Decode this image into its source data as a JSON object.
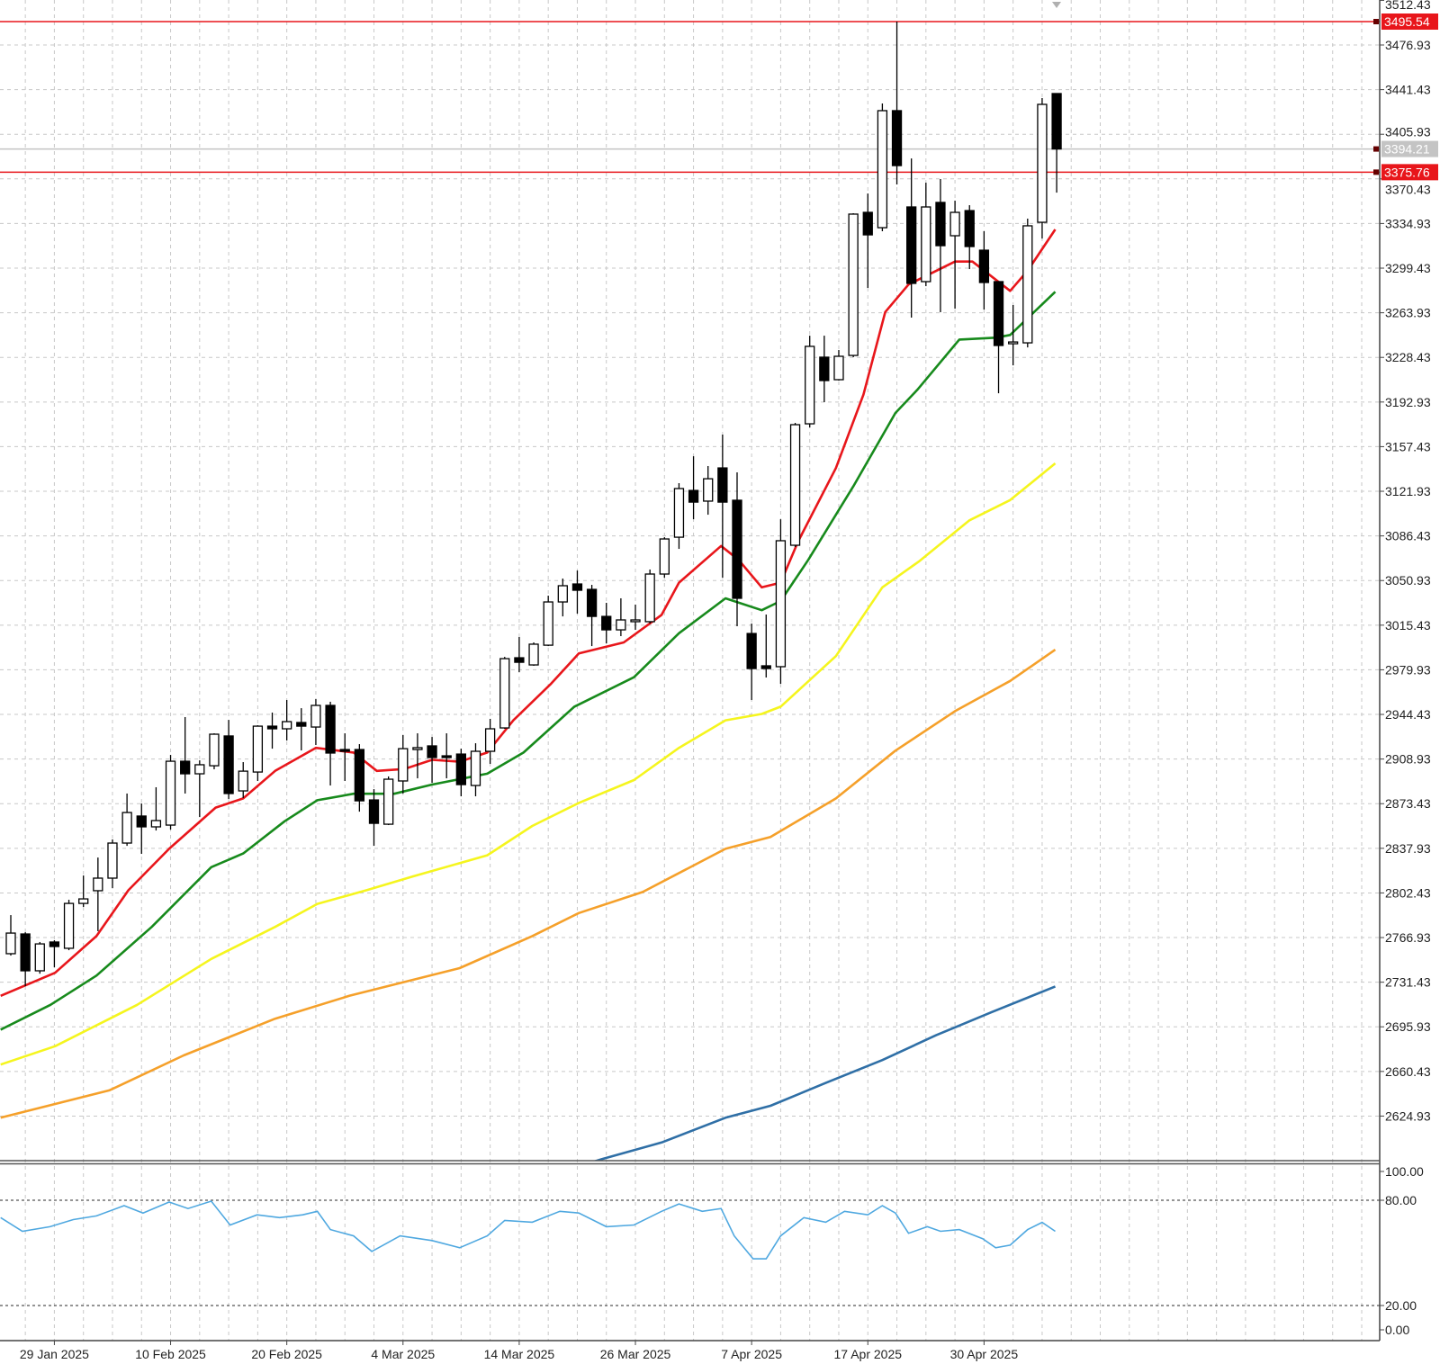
{
  "chart_data": [
    {
      "type": "candlestick",
      "title": "",
      "y_ticks": [
        "3512.43",
        "3476.93",
        "3441.43",
        "3405.93",
        "3370.43",
        "3334.93",
        "3299.43",
        "3263.93",
        "3228.43",
        "3192.93",
        "3157.43",
        "3121.93",
        "3086.43",
        "3050.93",
        "3015.43",
        "2979.93",
        "2944.43",
        "2908.93",
        "2873.43",
        "2837.93",
        "2802.43",
        "2766.93",
        "2731.43",
        "2695.93",
        "2660.43",
        "2624.93"
      ],
      "ylim": [
        2590,
        3512.43
      ],
      "grid": true,
      "x_labels": [
        {
          "index": 3,
          "label": "29 Jan 2025"
        },
        {
          "index": 11,
          "label": "10 Feb 2025"
        },
        {
          "index": 19,
          "label": "20 Feb 2025"
        },
        {
          "index": 27,
          "label": "4 Mar 2025"
        },
        {
          "index": 35,
          "label": "14 Mar 2025"
        },
        {
          "index": 43,
          "label": "26 Mar 2025"
        },
        {
          "index": 51,
          "label": "7 Apr 2025"
        },
        {
          "index": 59,
          "label": "17 Apr 2025"
        },
        {
          "index": 67,
          "label": "30 Apr 2025"
        }
      ],
      "candles_ohlc": [
        [
          2754.1,
          2784.8,
          2752.6,
          2770.5
        ],
        [
          2769.8,
          2771.2,
          2728.3,
          2740.5
        ],
        [
          2740.5,
          2763.4,
          2738.2,
          2761.9
        ],
        [
          2763.4,
          2764.8,
          2743.3,
          2759.8
        ],
        [
          2758.4,
          2797.0,
          2756.9,
          2794.1
        ],
        [
          2794.1,
          2816.3,
          2791.3,
          2797.7
        ],
        [
          2804.2,
          2830.6,
          2772.0,
          2814.2
        ],
        [
          2814.2,
          2845.0,
          2806.3,
          2842.1
        ],
        [
          2842.1,
          2881.5,
          2839.9,
          2866.4
        ],
        [
          2863.6,
          2873.6,
          2833.5,
          2855.0
        ],
        [
          2855.0,
          2886.5,
          2852.1,
          2860.0
        ],
        [
          2856.4,
          2912.2,
          2852.8,
          2907.2
        ],
        [
          2907.2,
          2942.3,
          2881.5,
          2897.2
        ],
        [
          2897.2,
          2907.9,
          2862.8,
          2904.4
        ],
        [
          2903.6,
          2929.4,
          2900.8,
          2928.7
        ],
        [
          2927.3,
          2940.1,
          2877.2,
          2881.5
        ],
        [
          2883.6,
          2906.5,
          2877.9,
          2899.3
        ],
        [
          2898.6,
          2935.8,
          2891.5,
          2935.1
        ],
        [
          2935.1,
          2945.9,
          2917.2,
          2933.0
        ],
        [
          2933.0,
          2955.9,
          2923.7,
          2938.7
        ],
        [
          2938.0,
          2949.4,
          2915.8,
          2935.1
        ],
        [
          2934.4,
          2956.6,
          2920.1,
          2951.6
        ],
        [
          2951.6,
          2954.5,
          2887.9,
          2913.7
        ],
        [
          2916.5,
          2929.4,
          2891.5,
          2915.1
        ],
        [
          2916.5,
          2920.8,
          2867.1,
          2875.7
        ],
        [
          2876.4,
          2885.0,
          2839.9,
          2857.8
        ],
        [
          2857.1,
          2895.1,
          2856.4,
          2892.9
        ],
        [
          2891.5,
          2928.0,
          2881.5,
          2917.2
        ],
        [
          2916.5,
          2929.4,
          2893.6,
          2918.0
        ],
        [
          2919.4,
          2926.5,
          2890.0,
          2910.1
        ],
        [
          2911.5,
          2929.4,
          2893.6,
          2910.1
        ],
        [
          2912.9,
          2917.2,
          2879.3,
          2888.6
        ],
        [
          2887.9,
          2921.5,
          2879.3,
          2915.1
        ],
        [
          2915.1,
          2940.9,
          2905.1,
          2933.0
        ],
        [
          2933.7,
          2990.2,
          2933.0,
          2988.8
        ],
        [
          2989.5,
          3006.0,
          2978.1,
          2985.9
        ],
        [
          2983.8,
          3001.7,
          2983.1,
          3000.3
        ],
        [
          2999.5,
          3038.9,
          2998.8,
          3033.9
        ],
        [
          3033.9,
          3052.5,
          3022.4,
          3046.8
        ],
        [
          3048.2,
          3058.9,
          3024.6,
          3043.2
        ],
        [
          3043.9,
          3047.5,
          2998.8,
          3022.4
        ],
        [
          3022.4,
          3033.2,
          3001.0,
          3011.7
        ],
        [
          3011.7,
          3036.8,
          3006.7,
          3019.6
        ],
        [
          3018.2,
          3031.8,
          3011.7,
          3019.6
        ],
        [
          3018.2,
          3059.7,
          3016.7,
          3056.1
        ],
        [
          3056.1,
          3085.4,
          3053.2,
          3084.0
        ],
        [
          3085.4,
          3128.4,
          3076.1,
          3124.1
        ],
        [
          3122.6,
          3149.8,
          3099.7,
          3113.3
        ],
        [
          3114.1,
          3142.0,
          3103.3,
          3131.9
        ],
        [
          3140.5,
          3167.0,
          3053.2,
          3113.3
        ],
        [
          3114.8,
          3137.0,
          3014.6,
          3036.8
        ],
        [
          3008.8,
          3016.7,
          2955.9,
          2980.9
        ],
        [
          2983.1,
          3023.9,
          2973.8,
          2980.9
        ],
        [
          2982.4,
          3099.7,
          2968.8,
          3082.6
        ],
        [
          3079.0,
          3176.3,
          3077.6,
          3174.9
        ],
        [
          3175.6,
          3245.7,
          3172.7,
          3237.2
        ],
        [
          3228.6,
          3245.7,
          3192.8,
          3210.0
        ],
        [
          3210.7,
          3234.3,
          3210.0,
          3229.3
        ],
        [
          3230.0,
          3343.1,
          3228.6,
          3342.4
        ],
        [
          3343.8,
          3358.8,
          3283.7,
          3325.9
        ],
        [
          3331.6,
          3430.4,
          3328.8,
          3424.7
        ],
        [
          3424.7,
          3495.54,
          3366.0,
          3381.0
        ],
        [
          3348.1,
          3386.7,
          3260.1,
          3287.3
        ],
        [
          3288.7,
          3367.4,
          3285.1,
          3348.1
        ],
        [
          3351.7,
          3370.3,
          3264.4,
          3317.3
        ],
        [
          3325.2,
          3353.1,
          3267.2,
          3343.8
        ],
        [
          3345.2,
          3349.5,
          3298.7,
          3316.6
        ],
        [
          3313.7,
          3328.8,
          3266.5,
          3288.0
        ],
        [
          3288.7,
          3288.7,
          3199.9,
          3237.9
        ],
        [
          3239.3,
          3270.1,
          3222.1,
          3240.7
        ],
        [
          3240.0,
          3338.8,
          3236.4,
          3333.1
        ],
        [
          3335.9,
          3434.7,
          3323.0,
          3429.7
        ],
        [
          3438.3,
          3438.3,
          3359.5,
          3394.21
        ]
      ],
      "overlays": [
        {
          "name": "ma-red",
          "color": "#e8161b",
          "points": [
            [
              -0.7,
              2720.6
            ],
            [
              3.05,
              2738.9
            ],
            [
              5.9,
              2768.1
            ],
            [
              8.1,
              2804.6
            ],
            [
              10.9,
              2837.5
            ],
            [
              14.1,
              2870.3
            ],
            [
              16.0,
              2877.6
            ],
            [
              18.2,
              2899.5
            ],
            [
              21.0,
              2917.8
            ],
            [
              23.6,
              2914.1
            ],
            [
              25.2,
              2899.5
            ],
            [
              27.1,
              2901.0
            ],
            [
              29.0,
              2908.3
            ],
            [
              30.9,
              2906.8
            ],
            [
              32.8,
              2914.1
            ],
            [
              34.6,
              2939.7
            ],
            [
              37.2,
              2968.9
            ],
            [
              39.1,
              2992.9
            ],
            [
              42.2,
              3001.7
            ],
            [
              44.8,
              3023.6
            ],
            [
              46.0,
              3049.2
            ],
            [
              48.9,
              3078.4
            ],
            [
              50.1,
              3067.4
            ],
            [
              51.7,
              3045.5
            ],
            [
              53.0,
              3049.2
            ],
            [
              54.2,
              3082.0
            ],
            [
              56.8,
              3140.4
            ],
            [
              58.7,
              3198.8
            ],
            [
              60.2,
              3264.5
            ],
            [
              61.8,
              3286.4
            ],
            [
              65.0,
              3304.7
            ],
            [
              66.2,
              3304.7
            ],
            [
              68.8,
              3281.3
            ],
            [
              70.0,
              3297.4
            ],
            [
              71.9,
              3330.2
            ]
          ]
        },
        {
          "name": "ma-green",
          "color": "#178a1c",
          "points": [
            [
              -0.7,
              2693.7
            ],
            [
              2.73,
              2713.4
            ],
            [
              5.9,
              2736.7
            ],
            [
              9.7,
              2775.4
            ],
            [
              13.8,
              2822.9
            ],
            [
              16.0,
              2833.8
            ],
            [
              18.85,
              2859.4
            ],
            [
              21.1,
              2876.2
            ],
            [
              23.6,
              2881.3
            ],
            [
              26.4,
              2881.3
            ],
            [
              29.0,
              2888.6
            ],
            [
              32.8,
              2897.3
            ],
            [
              35.3,
              2914.1
            ],
            [
              38.8,
              2950.6
            ],
            [
              42.9,
              2974.0
            ],
            [
              46.0,
              3009.0
            ],
            [
              49.2,
              3036.8
            ],
            [
              51.7,
              3027.3
            ],
            [
              53.0,
              3034.6
            ],
            [
              54.9,
              3067.4
            ],
            [
              58.0,
              3125.8
            ],
            [
              60.9,
              3184.2
            ],
            [
              62.4,
              3202.5
            ],
            [
              65.3,
              3242.6
            ],
            [
              67.8,
              3244.1
            ],
            [
              68.8,
              3246.3
            ],
            [
              71.9,
              3280.6
            ]
          ]
        },
        {
          "name": "ma-yellow",
          "color": "#f5f51e",
          "points": [
            [
              -0.7,
              2665.9
            ],
            [
              3.05,
              2680.5
            ],
            [
              8.7,
              2713.4
            ],
            [
              13.8,
              2749.9
            ],
            [
              18.2,
              2775.4
            ],
            [
              21.1,
              2793.7
            ],
            [
              24.5,
              2804.6
            ],
            [
              27.7,
              2815.6
            ],
            [
              32.8,
              2832.4
            ],
            [
              35.9,
              2855.7
            ],
            [
              39.1,
              2874.0
            ],
            [
              42.9,
              2892.2
            ],
            [
              46.0,
              2917.8
            ],
            [
              49.2,
              2939.7
            ],
            [
              51.7,
              2944.8
            ],
            [
              53.0,
              2950.6
            ],
            [
              56.8,
              2990.8
            ],
            [
              60.0,
              3045.5
            ],
            [
              62.5,
              3066.0
            ],
            [
              66.0,
              3098.8
            ],
            [
              68.8,
              3114.9
            ],
            [
              71.9,
              3144.1
            ]
          ]
        },
        {
          "name": "ma-orange",
          "color": "#f5a02a",
          "points": [
            [
              -0.7,
              2623.6
            ],
            [
              6.8,
              2645.5
            ],
            [
              11.9,
              2673.2
            ],
            [
              18.2,
              2702.4
            ],
            [
              23.3,
              2720.6
            ],
            [
              30.9,
              2742.6
            ],
            [
              35.9,
              2768.1
            ],
            [
              39.1,
              2786.4
            ],
            [
              43.5,
              2803.2
            ],
            [
              49.2,
              2837.5
            ],
            [
              52.3,
              2847.0
            ],
            [
              56.8,
              2877.6
            ],
            [
              60.9,
              2915.6
            ],
            [
              65.0,
              2947.0
            ],
            [
              68.8,
              2971.1
            ],
            [
              71.9,
              2995.9
            ]
          ]
        },
        {
          "name": "ma-blue",
          "color": "#2f6fa6",
          "points": [
            [
              39.1,
              2585.0
            ],
            [
              40.7,
              2590.7
            ],
            [
              44.8,
              2603.9
            ],
            [
              49.2,
              2623.6
            ],
            [
              52.3,
              2633.1
            ],
            [
              56.1,
              2651.3
            ],
            [
              60.0,
              2669.5
            ],
            [
              63.7,
              2689.2
            ],
            [
              67.5,
              2707.5
            ],
            [
              71.9,
              2728.0
            ]
          ]
        }
      ],
      "levels": [
        {
          "name": "resistance-line",
          "value": 3495.54,
          "label": "3495.54",
          "color": "#e8161b"
        },
        {
          "name": "support-line",
          "value": 3375.76,
          "label": "3375.76",
          "color": "#e8161b"
        }
      ],
      "current_price": {
        "value": 3394.21,
        "label": "3394.21",
        "color": "#c4c4c4"
      }
    },
    {
      "type": "line",
      "name": "RSI",
      "ylim": [
        0,
        100
      ],
      "y_ticks": [
        "100.00",
        "80.00",
        "20.00",
        "0.00"
      ],
      "levels": [
        80,
        20
      ],
      "color": "#4fa8e0",
      "points": [
        [
          -0.7,
          70.1
        ],
        [
          0.8,
          62.3
        ],
        [
          2.7,
          64.9
        ],
        [
          4.3,
          69.0
        ],
        [
          5.9,
          71.1
        ],
        [
          7.8,
          76.9
        ],
        [
          9.1,
          72.7
        ],
        [
          10.9,
          79.0
        ],
        [
          12.2,
          75.3
        ],
        [
          13.8,
          79.5
        ],
        [
          15.1,
          65.9
        ],
        [
          16.95,
          71.7
        ],
        [
          18.5,
          70.1
        ],
        [
          20.1,
          71.7
        ],
        [
          21.1,
          73.7
        ],
        [
          22.0,
          63.3
        ],
        [
          23.6,
          59.7
        ],
        [
          24.85,
          50.8
        ],
        [
          26.8,
          59.7
        ],
        [
          29.0,
          57.0
        ],
        [
          30.9,
          52.9
        ],
        [
          32.8,
          59.7
        ],
        [
          34.0,
          68.5
        ],
        [
          35.9,
          67.5
        ],
        [
          37.8,
          73.7
        ],
        [
          39.1,
          72.7
        ],
        [
          41.0,
          64.9
        ],
        [
          42.9,
          65.9
        ],
        [
          44.8,
          73.7
        ],
        [
          46.0,
          77.9
        ],
        [
          47.6,
          73.7
        ],
        [
          48.9,
          75.3
        ],
        [
          49.8,
          59.7
        ],
        [
          51.1,
          46.6
        ],
        [
          52.0,
          46.6
        ],
        [
          53.0,
          59.7
        ],
        [
          54.6,
          70.1
        ],
        [
          56.1,
          67.5
        ],
        [
          57.4,
          73.7
        ],
        [
          59.0,
          71.7
        ],
        [
          60.0,
          76.9
        ],
        [
          60.9,
          72.7
        ],
        [
          61.8,
          61.2
        ],
        [
          63.1,
          64.9
        ],
        [
          64.0,
          62.3
        ],
        [
          65.3,
          63.3
        ],
        [
          66.9,
          58.1
        ],
        [
          67.8,
          52.9
        ],
        [
          68.8,
          54.4
        ],
        [
          70.0,
          63.3
        ],
        [
          71.0,
          67.4
        ],
        [
          71.9,
          62.3
        ]
      ]
    }
  ]
}
